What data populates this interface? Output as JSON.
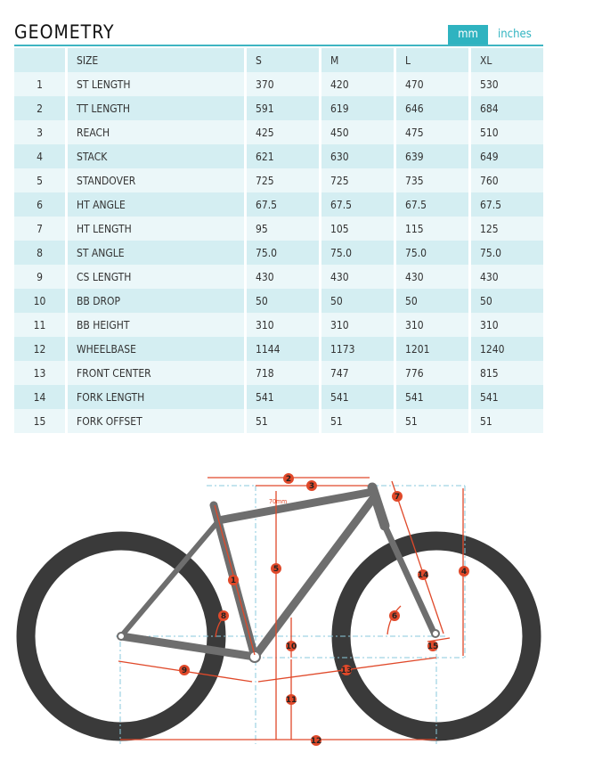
{
  "title": "GEOMETRY",
  "units": {
    "mm": "mm",
    "inches": "inches",
    "active": "mm"
  },
  "header": [
    "",
    "SIZE",
    "S",
    "M",
    "L",
    "XL"
  ],
  "rows": [
    [
      "1",
      "ST LENGTH",
      "370",
      "420",
      "470",
      "530"
    ],
    [
      "2",
      "TT LENGTH",
      "591",
      "619",
      "646",
      "684"
    ],
    [
      "3",
      "REACH",
      "425",
      "450",
      "475",
      "510"
    ],
    [
      "4",
      "STACK",
      "621",
      "630",
      "639",
      "649"
    ],
    [
      "5",
      "STANDOVER",
      "725",
      "725",
      "735",
      "760"
    ],
    [
      "6",
      "HT ANGLE",
      "67.5",
      "67.5",
      "67.5",
      "67.5"
    ],
    [
      "7",
      "HT LENGTH",
      "95",
      "105",
      "115",
      "125"
    ],
    [
      "8",
      "ST ANGLE",
      "75.0",
      "75.0",
      "75.0",
      "75.0"
    ],
    [
      "9",
      "CS LENGTH",
      "430",
      "430",
      "430",
      "430"
    ],
    [
      "10",
      "BB DROP",
      "50",
      "50",
      "50",
      "50"
    ],
    [
      "11",
      "BB HEIGHT",
      "310",
      "310",
      "310",
      "310"
    ],
    [
      "12",
      "WHEELBASE",
      "1144",
      "1173",
      "1201",
      "1240"
    ],
    [
      "13",
      "FRONT CENTER",
      "718",
      "747",
      "776",
      "815"
    ],
    [
      "14",
      "FORK LENGTH",
      "541",
      "541",
      "541",
      "541"
    ],
    [
      "15",
      "FORK OFFSET",
      "51",
      "51",
      "51",
      "51"
    ]
  ],
  "diagram": {
    "offset_label": "70mm",
    "markers": [
      "1",
      "2",
      "3",
      "4",
      "5",
      "6",
      "7",
      "8",
      "9",
      "10",
      "11",
      "12",
      "13",
      "14",
      "15"
    ]
  },
  "colors": {
    "accent": "#2fb3c0",
    "dimension": "#e0492a",
    "frame": "#6e6e6e",
    "tire": "#3a3a3a"
  }
}
